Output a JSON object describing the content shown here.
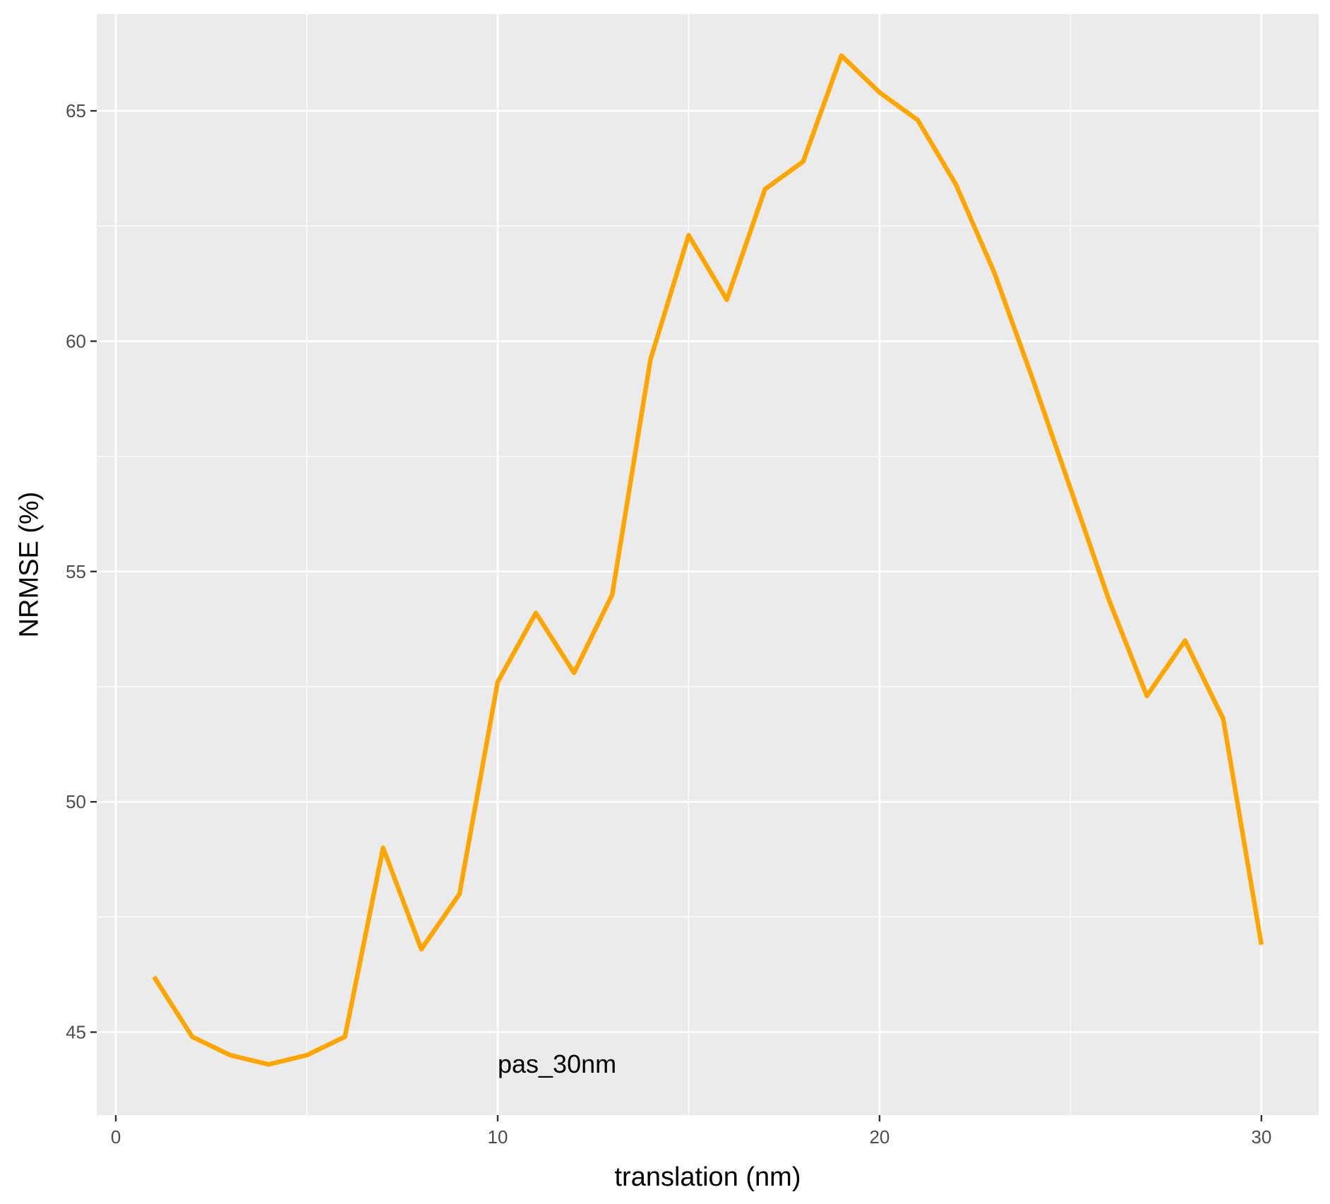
{
  "chart_data": {
    "type": "line",
    "xlabel": "translation (nm)",
    "ylabel": "NRMSE (%)",
    "xlim": [
      -0.5,
      31.5
    ],
    "ylim": [
      43.2,
      67.1
    ],
    "x_ticks": [
      0,
      10,
      20,
      30
    ],
    "y_ticks": [
      45,
      50,
      55,
      60,
      65
    ],
    "grid": true,
    "line_color": "#FFA500",
    "panel_background": "#EBEBEB",
    "annotation": {
      "text": "pas_30nm",
      "x": 10,
      "y": 44.3
    },
    "series": [
      {
        "x": [
          1,
          2,
          3,
          4,
          5,
          6,
          7,
          8,
          9,
          10,
          11,
          12,
          13,
          14,
          15,
          16,
          17,
          18,
          19,
          20,
          21,
          22,
          23,
          24,
          25,
          26,
          27,
          28,
          29,
          30
        ],
        "y": [
          46.2,
          44.9,
          44.5,
          44.3,
          44.5,
          44.9,
          49.0,
          46.8,
          48.0,
          52.6,
          54.1,
          52.8,
          54.5,
          59.6,
          62.3,
          60.9,
          63.3,
          63.9,
          66.2,
          65.4,
          64.8,
          63.4,
          61.5,
          59.2,
          56.8,
          54.4,
          52.3,
          53.5,
          51.8,
          46.9
        ]
      }
    ]
  }
}
